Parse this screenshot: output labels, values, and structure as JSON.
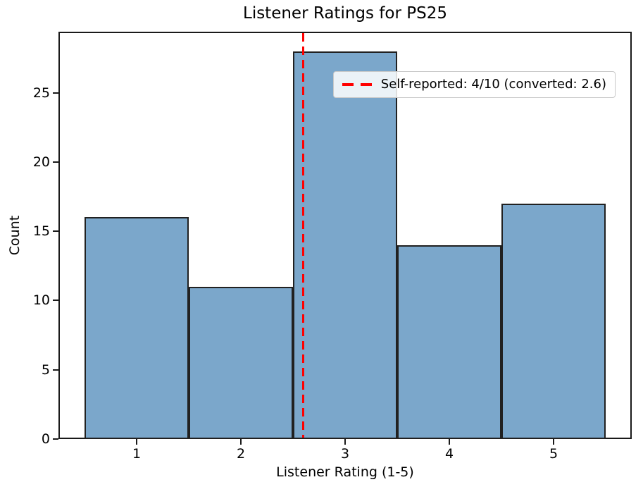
{
  "figure": {
    "background_color": "#ffffff",
    "spine_color": "#1a1a1a"
  },
  "chart_data": {
    "type": "bar",
    "subtype": "histogram",
    "title": "Listener Ratings for PS25",
    "xlabel": "Listener Rating (1-5)",
    "ylabel": "Count",
    "categories": [
      1,
      2,
      3,
      4,
      5
    ],
    "bin_edges": [
      0.5,
      1.5,
      2.5,
      3.5,
      4.5,
      5.5
    ],
    "values": [
      16,
      11,
      28,
      14,
      17
    ],
    "xlim": [
      0.25,
      5.75
    ],
    "ylim": [
      0,
      29.4
    ],
    "xticks": [
      1,
      2,
      3,
      4,
      5
    ],
    "yticks": [
      0,
      5,
      10,
      15,
      20,
      25
    ],
    "grid": false,
    "bar_fill_color": "#7BA7CB",
    "bar_edge_color": "#212121",
    "legend_position": "upper right",
    "vline": {
      "x": 2.6,
      "color": "#ff0000",
      "style": "dashed",
      "label": "Self-reported: 4/10 (converted: 2.6)"
    }
  }
}
